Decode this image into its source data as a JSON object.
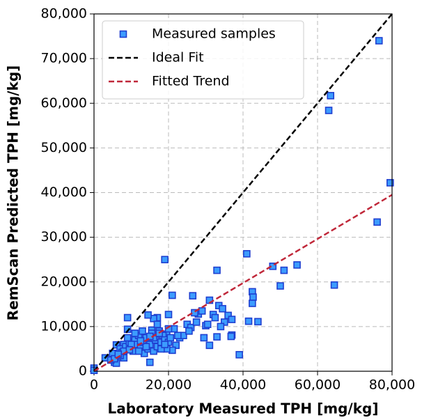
{
  "chart_data": {
    "type": "scatter",
    "xlabel": "Laboratory Measured TPH [mg/kg]",
    "ylabel": "RemScan Predicted TPH [mg/kg]",
    "xlim": [
      0,
      80000
    ],
    "ylim": [
      0,
      80000
    ],
    "xticks": [
      0,
      {
        "value": 20000,
        "label": "20,000"
      },
      {
        "value": 40000,
        "label": "40,000"
      },
      {
        "value": 60000,
        "label": "60,000"
      },
      {
        "value": 80000,
        "label": "80,000"
      }
    ],
    "yticks": [
      0,
      {
        "value": 10000,
        "label": "10,000"
      },
      {
        "value": 20000,
        "label": "20,000"
      },
      {
        "value": 30000,
        "label": "30,000"
      },
      {
        "value": 40000,
        "label": "40,000"
      },
      {
        "value": 50000,
        "label": "50,000"
      },
      {
        "value": 60000,
        "label": "60,000"
      },
      {
        "value": 70000,
        "label": "70,000"
      },
      {
        "value": 80000,
        "label": "80,000"
      }
    ],
    "grid": true,
    "legend": "upper left",
    "series": [
      {
        "name": "Measured samples",
        "color": "#3c9cff",
        "edgecolor": "#1f3fd0",
        "x": [
          76500,
          63500,
          63000,
          79500,
          76000,
          64500,
          54500,
          51000,
          48000,
          50000,
          41000,
          42500,
          42700,
          42500,
          44000,
          41500,
          39000,
          37000,
          36800,
          33000,
          19000,
          21000,
          26500,
          31000,
          33500,
          34500,
          36000,
          37000,
          35000,
          32000,
          30000,
          31000,
          29500,
          33000,
          34000,
          28000,
          27000,
          25000,
          26000,
          23000,
          22000,
          21000,
          24000,
          20000,
          19500,
          17000,
          16000,
          15500,
          14500,
          15000,
          9000,
          9000,
          8000,
          6000,
          5500,
          6000,
          0,
          0,
          3000,
          4500,
          5000,
          6500,
          7000,
          7500,
          8000,
          8500,
          9500,
          10000,
          10500,
          11000,
          11500,
          12000,
          12500,
          13000,
          13500,
          14000,
          14500,
          15000,
          15500,
          16000,
          16500,
          17000,
          17500,
          18000,
          18500,
          19000,
          19500,
          20000,
          20500,
          21500,
          22500,
          7000,
          8000,
          9000,
          10000,
          11000,
          12000,
          13000,
          14000,
          16000,
          17000,
          18000,
          5500,
          6500,
          9500,
          12500,
          15000,
          17500,
          19000,
          20000,
          27500,
          29000,
          25500,
          30500,
          32500
        ],
        "y": [
          74000,
          61700,
          58400,
          42200,
          33400,
          19300,
          23800,
          22600,
          23500,
          19100,
          26300,
          17800,
          16600,
          15200,
          11100,
          11200,
          3700,
          8100,
          7800,
          22600,
          25000,
          17000,
          16900,
          15900,
          14700,
          14000,
          12500,
          11600,
          11000,
          12700,
          10200,
          5800,
          7500,
          7700,
          10000,
          12800,
          13100,
          10500,
          9800,
          7500,
          5800,
          4700,
          8000,
          12700,
          8300,
          12000,
          11800,
          9200,
          12600,
          2000,
          12000,
          9400,
          6000,
          5900,
          2000,
          1800,
          700,
          200,
          3000,
          2500,
          4000,
          3500,
          5000,
          4200,
          3000,
          5500,
          6500,
          5000,
          4500,
          7000,
          6000,
          8000,
          5500,
          6500,
          4000,
          7500,
          5000,
          6000,
          8500,
          4500,
          7000,
          5500,
          9000,
          6500,
          8000,
          7000,
          5000,
          6500,
          7500,
          9500,
          8000,
          3500,
          4500,
          7500,
          6000,
          8500,
          4500,
          9000,
          5500,
          7500,
          10500,
          5000,
          2800,
          3800,
          4800,
          6800,
          7800,
          8500,
          6000,
          9500,
          11000,
          13500,
          9000,
          10500,
          12000
        ]
      }
    ],
    "lines": [
      {
        "name": "Ideal Fit",
        "color": "#000000",
        "x": [
          0,
          80000
        ],
        "y": [
          0,
          80000
        ]
      },
      {
        "name": "Fitted Trend",
        "color": "#c0283a",
        "x": [
          0,
          80000
        ],
        "y": [
          0,
          39500
        ]
      }
    ]
  }
}
